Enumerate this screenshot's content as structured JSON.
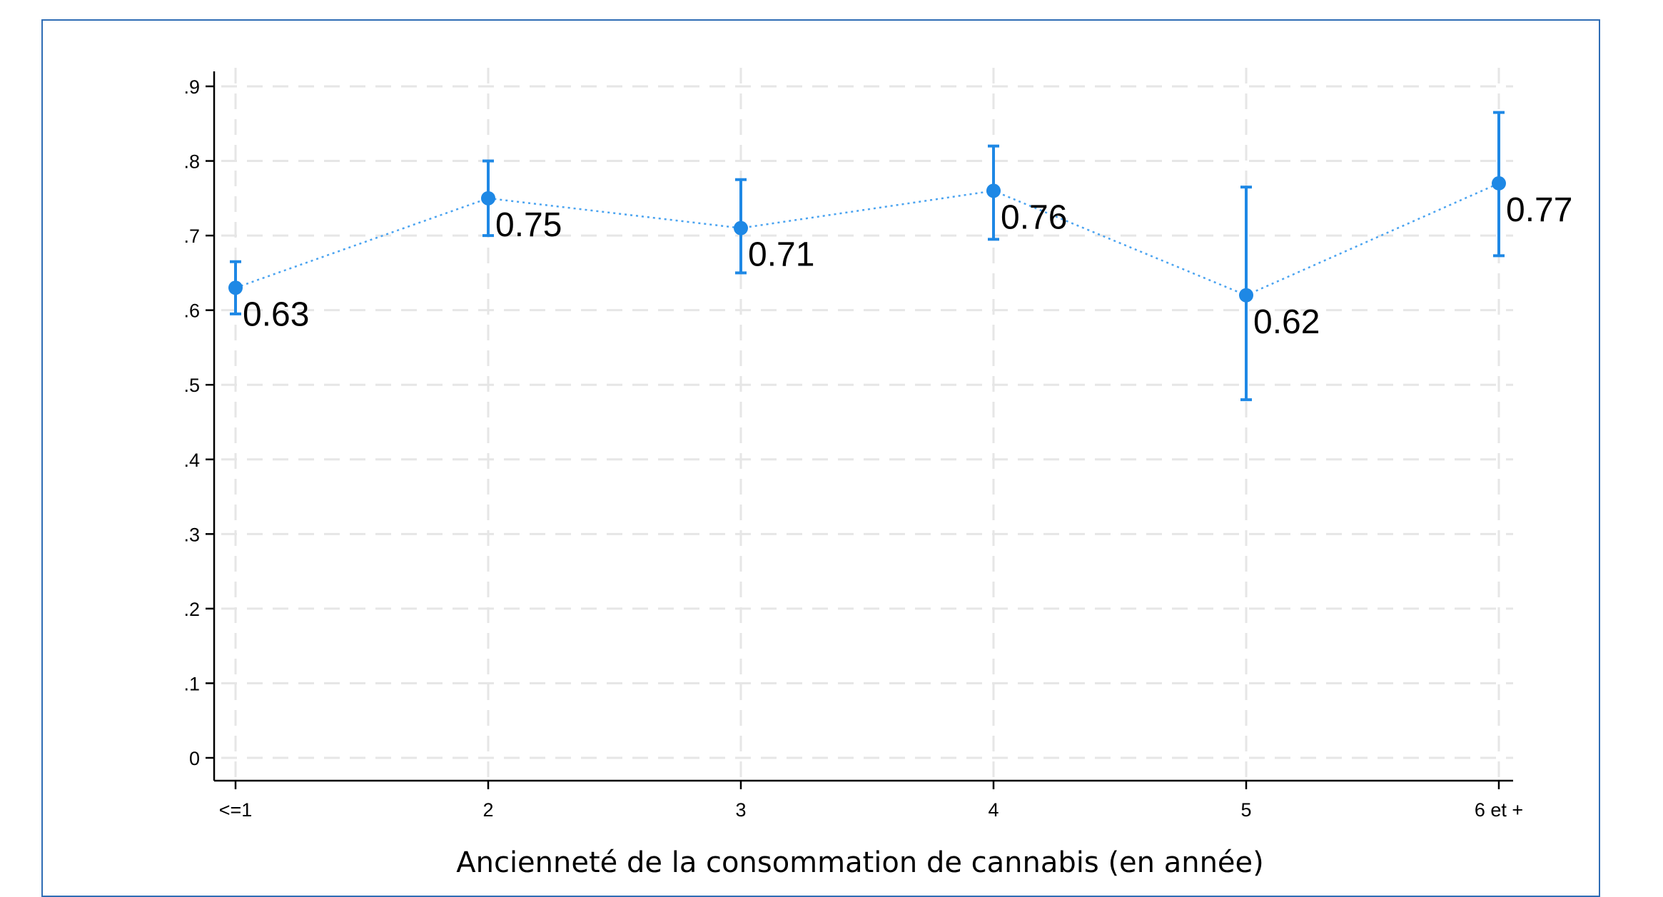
{
  "chart_data": {
    "type": "line",
    "categories": [
      "<=1",
      "2",
      "3",
      "4",
      "5",
      "6 et +"
    ],
    "series": [
      {
        "values": [
          0.63,
          0.75,
          0.71,
          0.76,
          0.62,
          0.77
        ],
        "ci_low": [
          0.595,
          0.7,
          0.65,
          0.695,
          0.48,
          0.673
        ],
        "ci_high": [
          0.665,
          0.8,
          0.775,
          0.82,
          0.765,
          0.865
        ],
        "labels": [
          "0.63",
          "0.75",
          "0.71",
          "0.76",
          "0.62",
          "0.77"
        ]
      }
    ],
    "xlabel": "Ancienneté de la consommation de cannabis (en année)",
    "ylabel": "",
    "title": "",
    "ylim": [
      0,
      0.9
    ],
    "yticks": [
      0,
      0.1,
      0.2,
      0.3,
      0.4,
      0.5,
      0.6,
      0.7,
      0.8,
      0.9
    ],
    "ytick_labels": [
      "0",
      ".1",
      ".2",
      ".3",
      ".4",
      ".5",
      ".6",
      ".7",
      ".8",
      ".9"
    ],
    "grid": true,
    "colors": {
      "series": "#1e88e5",
      "connector": "#4aa3f0",
      "grid": "#e6e6e6",
      "frame": "#2f6db5"
    }
  }
}
